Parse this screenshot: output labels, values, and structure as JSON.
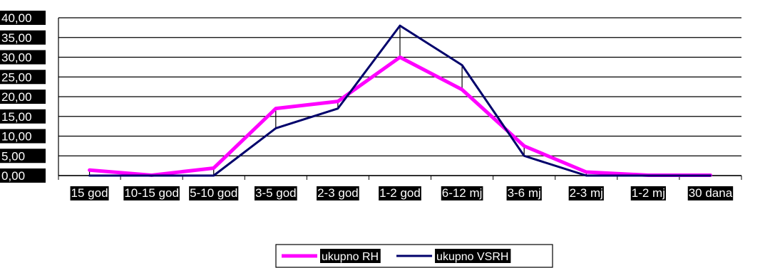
{
  "chart_data": {
    "type": "line",
    "categories": [
      "15 god",
      "10-15 god",
      "5-10 god",
      "3-5 god",
      "2-3 god",
      "1-2 god",
      "6-12 mj",
      "3-6 mj",
      "2-3 mj",
      "1-2 mj",
      "30 dana"
    ],
    "y_ticks": [
      "0,00",
      "5,00",
      "10,00",
      "15,00",
      "20,00",
      "25,00",
      "30,00",
      "35,00",
      "40,00"
    ],
    "ylim": [
      0,
      40
    ],
    "grid": true,
    "high_low_lines": true,
    "legend_position": "bottom",
    "series": [
      {
        "name": "ukupno RH",
        "color": "#ff00ff",
        "values": [
          1.4,
          0.1,
          1.9,
          17.0,
          18.8,
          30.0,
          21.8,
          7.5,
          0.9,
          0.1,
          0.1
        ]
      },
      {
        "name": "ukupno VSRH",
        "color": "#00006b",
        "values": [
          0.0,
          0.0,
          0.0,
          12.0,
          17.0,
          38.0,
          28.0,
          5.0,
          0.0,
          0.0,
          0.0
        ]
      }
    ]
  }
}
